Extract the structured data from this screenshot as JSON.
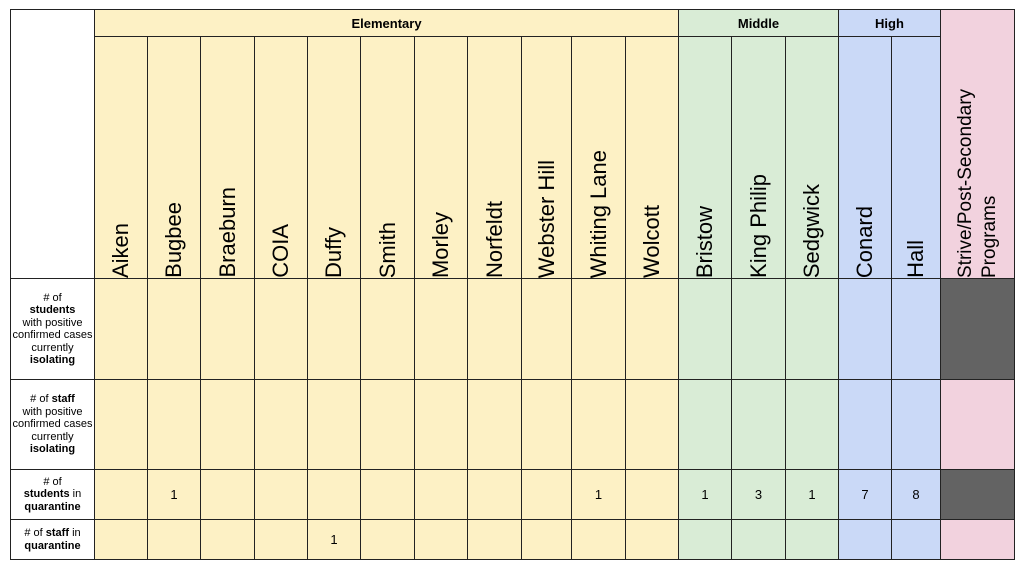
{
  "groups": {
    "elementary": "Elementary",
    "middle": "Middle",
    "high": "High"
  },
  "schools": [
    "Aiken",
    "Bugbee",
    "Braeburn",
    "COIA",
    "Duffy",
    "Smith",
    "Morley",
    "Norfeldt",
    "Webster Hill",
    "Whiting Lane",
    "Wolcott",
    "Bristow",
    "King Philip",
    "Sedgwick",
    "Conard",
    "Hall",
    "Strive/Post-Secondary Programs"
  ],
  "rows": [
    {
      "label_parts": [
        "# of",
        "students",
        "with positive confirmed cases currently",
        "isolating"
      ],
      "values": [
        "",
        "",
        "",
        "",
        "",
        "",
        "",
        "",
        "",
        "",
        "",
        "",
        "",
        "",
        "",
        "",
        ""
      ]
    },
    {
      "label_parts": [
        "# of",
        "staff",
        "with positive confirmed cases currently",
        "isolating"
      ],
      "values": [
        "",
        "",
        "",
        "",
        "",
        "",
        "",
        "",
        "",
        "",
        "",
        "",
        "",
        "",
        "",
        "",
        ""
      ]
    },
    {
      "label_parts": [
        "# of",
        "students",
        "in",
        "quarantine"
      ],
      "values": [
        "",
        "1",
        "",
        "",
        "",
        "",
        "",
        "",
        "",
        "1",
        "",
        "1",
        "3",
        "1",
        "7",
        "8",
        ""
      ]
    },
    {
      "label_parts": [
        "# of",
        "staff",
        "in",
        "quarantine"
      ],
      "values": [
        "",
        "",
        "",
        "",
        "1",
        "",
        "",
        "",
        "",
        "",
        "",
        "",
        "",
        "",
        "",
        "",
        ""
      ]
    }
  ],
  "colors": {
    "elementary": "#fdf1c5",
    "middle": "#d9ecd6",
    "high": "#cad9f7",
    "programs": "#f2d2de",
    "not_applicable": "#636363"
  }
}
